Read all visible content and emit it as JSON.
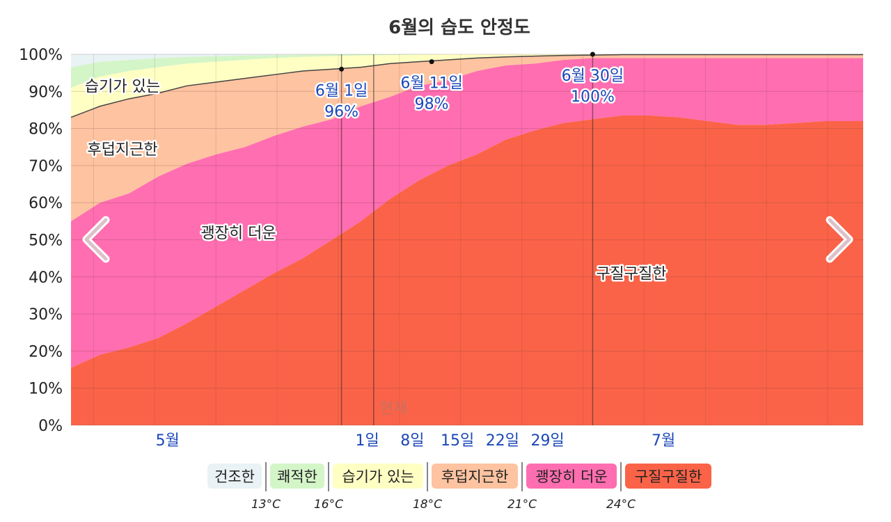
{
  "chart_data": {
    "type": "area",
    "title": "6월의 습도 안정도",
    "y_ticks": [
      "0%",
      "10%",
      "20%",
      "30%",
      "40%",
      "50%",
      "60%",
      "70%",
      "80%",
      "90%",
      "100%"
    ],
    "ylim": [
      0,
      100
    ],
    "x_ticks": [
      "5월",
      "1일",
      "8일",
      "15일",
      "22일",
      "29일",
      "7월"
    ],
    "x_month_index": [
      15,
      46,
      53,
      60,
      67,
      74,
      92
    ],
    "xlim": [
      0,
      123
    ],
    "grid": true,
    "series": [
      {
        "name": "구질구질한",
        "color": "#fb6348",
        "values": [
          15.5,
          19,
          21,
          23.5,
          27.5,
          32,
          36.5,
          41,
          45,
          50,
          55,
          61,
          66,
          70,
          73,
          77,
          79.5,
          81.5,
          82.5,
          83.5,
          83.5,
          83,
          82,
          81,
          81,
          81.5,
          82,
          82
        ]
      },
      {
        "name": "괭장히 더운",
        "color": "#ff6eb0",
        "values": [
          55,
          60,
          62.5,
          67,
          70.5,
          73,
          75,
          78,
          80.5,
          82.5,
          86,
          88.5,
          91.5,
          93,
          95.5,
          97,
          97.5,
          98.5,
          99,
          99,
          99,
          99,
          99,
          99,
          99,
          99,
          99,
          99
        ]
      },
      {
        "name": "후덥지근한",
        "color": "#fec3a0",
        "values": [
          83,
          86,
          88,
          89.5,
          91.5,
          92.5,
          93.5,
          94.5,
          95.5,
          96,
          96.5,
          97.5,
          98,
          98.5,
          99,
          99.3,
          99.5,
          99.7,
          99.8,
          99.9,
          99.9,
          99.9,
          99.9,
          99.9,
          99.9,
          99.9,
          99.9,
          99.9
        ]
      },
      {
        "name": "습기가 있는",
        "color": "#ffffc4",
        "values": [
          91,
          94,
          95.5,
          96.5,
          97.5,
          98,
          98.5,
          99,
          99.3,
          99.5,
          99.7,
          99.8,
          99.9,
          100,
          100,
          100,
          100,
          100,
          100,
          100,
          100,
          100,
          100,
          100,
          100,
          100,
          100,
          100
        ]
      },
      {
        "name": "쾌적한",
        "color": "#d4f5c8",
        "values": [
          96.5,
          98,
          98.5,
          99,
          99.3,
          99.5,
          99.7,
          99.8,
          99.9,
          100,
          100,
          100,
          100,
          100,
          100,
          100,
          100,
          100,
          100,
          100,
          100,
          100,
          100,
          100,
          100,
          100,
          100,
          100
        ]
      },
      {
        "name": "건조한",
        "color": "#e9f2f5",
        "values": [
          100,
          100,
          100,
          100,
          100,
          100,
          100,
          100,
          100,
          100,
          100,
          100,
          100,
          100,
          100,
          100,
          100,
          100,
          100,
          100,
          100,
          100,
          100,
          100,
          100,
          100,
          100,
          100
        ]
      }
    ],
    "x_step_days": 4.5,
    "region_labels": [
      {
        "text": "습기가 있는",
        "day": 8,
        "value": 91.5
      },
      {
        "text": "후덥지근한",
        "day": 8,
        "value": 74.5
      },
      {
        "text": "괭장히 더운",
        "day": 26,
        "value": 52
      },
      {
        "text": "구질구질한",
        "day": 87,
        "value": 41
      }
    ],
    "annotations": [
      {
        "date_label": "6월 1일",
        "value_label": "96%",
        "day": 42,
        "value": 96
      },
      {
        "date_label": "6월 11일",
        "value_label": "98%",
        "day": 56,
        "value": 98
      },
      {
        "date_label": "6월 30일",
        "value_label": "100%",
        "day": 81,
        "value": 100
      }
    ],
    "now_label": "현재",
    "now_day": 47,
    "legend": [
      {
        "label": "건조한",
        "color": "#e9f2f5"
      },
      {
        "label": "쾌적한",
        "color": "#d4f5c8"
      },
      {
        "label": "습기가 있는",
        "color": "#ffffc4"
      },
      {
        "label": "후덥지근한",
        "color": "#fec3a0"
      },
      {
        "label": "괭장히 더운",
        "color": "#ff6eb0"
      },
      {
        "label": "구질구질한",
        "color": "#fb6348"
      }
    ],
    "legend_temps": [
      "13°C",
      "16°C",
      "18°C",
      "21°C",
      "24°C"
    ]
  },
  "nav": {
    "prev_icon": "chevron-left-icon",
    "next_icon": "chevron-right-icon"
  }
}
